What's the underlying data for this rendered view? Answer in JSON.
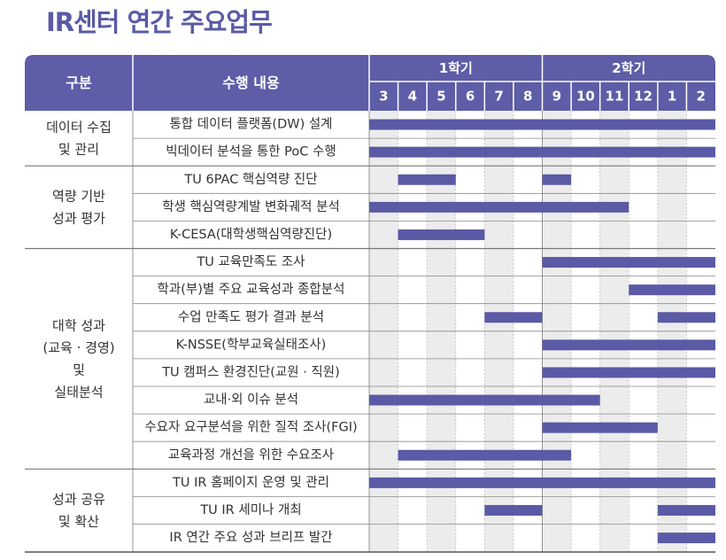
{
  "title": "IR센터 연간 주요업무",
  "colors": {
    "header": "#5d5da8",
    "bar": "#5a5aa6",
    "title": "#5a5aa6",
    "shade": "#ececec"
  },
  "header": {
    "category": "구분",
    "task": "수행 내용",
    "semesters": [
      {
        "label": "1학기",
        "months": [
          "3",
          "4",
          "5",
          "6",
          "7",
          "8"
        ]
      },
      {
        "label": "2학기",
        "months": [
          "9",
          "10",
          "11",
          "12",
          "1",
          "2"
        ]
      }
    ]
  },
  "groups": [
    {
      "label": [
        "데이터 수집",
        "및 관리"
      ],
      "row_count": 2
    },
    {
      "label": [
        "역량 기반",
        "성과 평가"
      ],
      "row_count": 3
    },
    {
      "label": [
        "대학 성과",
        "(교육 · 경영)",
        "및",
        "실태분석"
      ],
      "row_count": 8
    },
    {
      "label": [
        "성과 공유",
        "및 확산"
      ],
      "row_count": 3
    }
  ],
  "chart_data": {
    "type": "gantt",
    "title": "IR센터 연간 주요업무",
    "time_unit": "month",
    "columns": [
      "3",
      "4",
      "5",
      "6",
      "7",
      "8",
      "9",
      "10",
      "11",
      "12",
      "1",
      "2"
    ],
    "tasks": [
      {
        "name": "통합 데이터 플랫폼(DW) 설계",
        "spans": [
          [
            0,
            12
          ]
        ]
      },
      {
        "name": "빅데이터 분석을 통한 PoC 수행",
        "spans": [
          [
            0,
            12
          ]
        ]
      },
      {
        "name": "TU 6PAC 핵심역량 진단",
        "spans": [
          [
            1,
            3
          ],
          [
            6,
            7
          ]
        ]
      },
      {
        "name": "학생 핵심역량계발 변화궤적 분석",
        "spans": [
          [
            0,
            9
          ]
        ]
      },
      {
        "name": "K-CESA(대학생핵심역량진단)",
        "spans": [
          [
            1,
            4
          ]
        ]
      },
      {
        "name": "TU 교육만족도 조사",
        "spans": [
          [
            6,
            12
          ]
        ]
      },
      {
        "name": "학과(부)별 주요 교육성과 종합분석",
        "spans": [
          [
            9,
            12
          ]
        ]
      },
      {
        "name": "수업 만족도 평가 결과 분석",
        "spans": [
          [
            4,
            6
          ],
          [
            10,
            12
          ]
        ]
      },
      {
        "name": "K-NSSE(학부교육실태조사)",
        "spans": [
          [
            6,
            12
          ]
        ]
      },
      {
        "name": "TU 캠퍼스 환경진단(교원 · 직원)",
        "spans": [
          [
            6,
            12
          ]
        ]
      },
      {
        "name": "교내·외 이슈 분석",
        "spans": [
          [
            0,
            8
          ]
        ]
      },
      {
        "name": "수요자 요구분석을 위한 질적 조사(FGI)",
        "spans": [
          [
            6,
            10
          ]
        ]
      },
      {
        "name": "교육과정 개선을 위한 수요조사",
        "spans": [
          [
            1,
            7
          ]
        ]
      },
      {
        "name": "TU IR 홈페이지 운영 및 관리",
        "spans": [
          [
            0,
            12
          ]
        ]
      },
      {
        "name": "TU IR 세미나 개최",
        "spans": [
          [
            4,
            6
          ],
          [
            10,
            12
          ]
        ]
      },
      {
        "name": "IR 연간 주요 성과 브리프 발간",
        "spans": [
          [
            10,
            12
          ]
        ]
      }
    ]
  }
}
